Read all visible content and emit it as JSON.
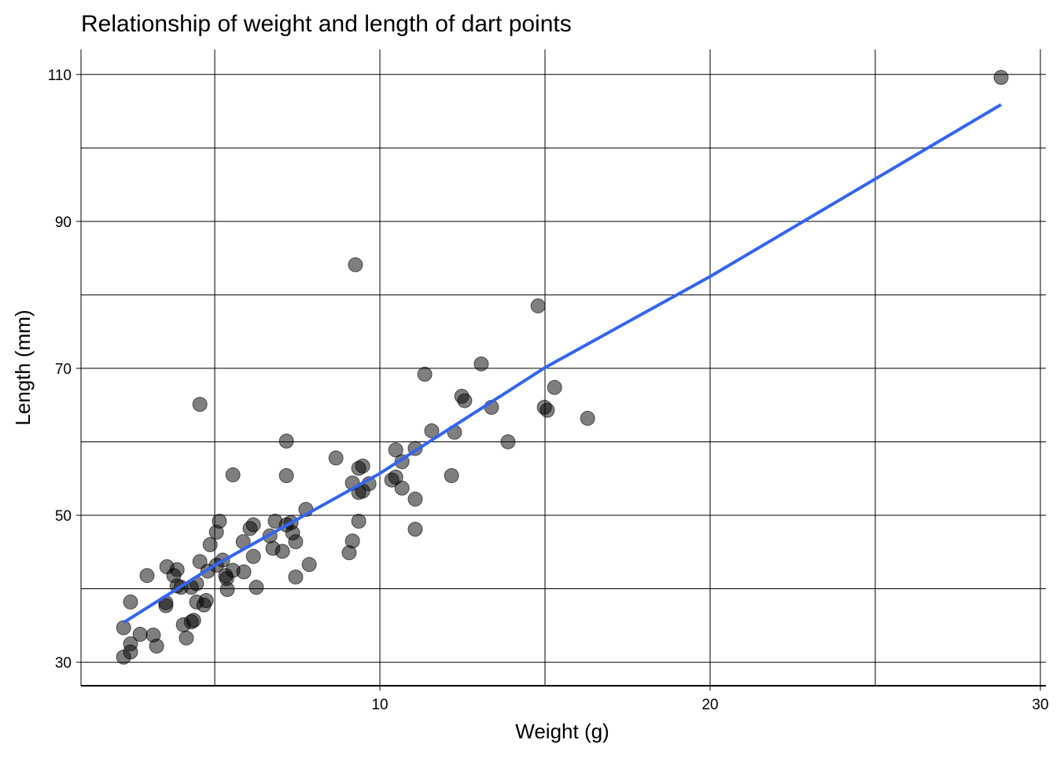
{
  "chart_data": {
    "type": "scatter",
    "title": "Relationship of weight and length of dart points",
    "x_label": "Weight (g)",
    "y_label": "Length (mm)",
    "x": [
      2.24,
      2.45,
      2.45,
      2.24,
      2.74,
      3.14,
      3.24,
      2.45,
      2.95,
      3.52,
      3.55,
      3.52,
      3.76,
      3.86,
      3.86,
      3.98,
      4.05,
      4.14,
      4.29,
      4.36,
      4.29,
      4.45,
      4.45,
      4.55,
      4.55,
      4.67,
      4.74,
      4.79,
      4.86,
      5.05,
      5.14,
      5.05,
      5.24,
      5.33,
      5.38,
      5.36,
      5.55,
      5.55,
      5.86,
      5.88,
      6.07,
      6.17,
      6.17,
      6.26,
      6.67,
      6.76,
      6.83,
      7.05,
      7.17,
      7.17,
      7.17,
      7.31,
      7.36,
      7.45,
      7.45,
      7.76,
      7.86,
      8.67,
      9.07,
      9.17,
      9.17,
      9.26,
      9.36,
      9.36,
      9.36,
      9.48,
      9.48,
      9.67,
      10.36,
      10.48,
      10.48,
      10.67,
      10.67,
      11.07,
      11.07,
      11.07,
      11.36,
      11.57,
      12.17,
      12.26,
      12.48,
      12.57,
      13.07,
      13.38,
      13.88,
      14.79,
      14.98,
      15.07,
      15.29,
      16.29,
      28.81
    ],
    "values": [
      30.7,
      31.4,
      32.5,
      34.7,
      33.8,
      33.7,
      32.2,
      38.2,
      41.8,
      38.1,
      43.0,
      37.7,
      41.8,
      42.6,
      40.4,
      40.2,
      35.1,
      33.3,
      35.5,
      35.7,
      40.2,
      40.7,
      38.2,
      43.7,
      65.1,
      37.8,
      38.4,
      42.4,
      46.0,
      47.7,
      49.2,
      43.2,
      43.9,
      41.8,
      39.9,
      41.4,
      42.5,
      55.5,
      46.4,
      42.3,
      48.2,
      48.7,
      44.4,
      40.2,
      47.2,
      45.5,
      49.2,
      45.1,
      60.1,
      55.4,
      48.7,
      49.0,
      47.6,
      46.4,
      41.6,
      50.8,
      43.3,
      57.8,
      44.9,
      46.5,
      54.4,
      84.1,
      56.4,
      53.1,
      49.2,
      56.7,
      53.3,
      54.3,
      54.8,
      58.9,
      55.2,
      57.3,
      53.7,
      59.1,
      52.2,
      48.1,
      69.2,
      61.5,
      55.4,
      61.3,
      66.2,
      65.6,
      70.6,
      64.7,
      60.0,
      78.5,
      64.7,
      64.3,
      67.4,
      63.2,
      109.6
    ],
    "color": "#000000",
    "fit_line": {
      "color": "#3366ee",
      "x": [
        2.24,
        5,
        10,
        15,
        20,
        28.81
      ],
      "values": [
        35.4,
        43.2,
        55.7,
        70.1,
        82.5,
        105.9
      ]
    },
    "xlim": [
      0.95,
      30.17
    ],
    "ylim": [
      26.8,
      113.4
    ],
    "xticks": [
      10,
      20,
      30
    ],
    "yticks": [
      30,
      50,
      70,
      90,
      110
    ],
    "xminorticks": [
      5,
      15,
      25
    ],
    "yminorticks": [
      40,
      60,
      80,
      100
    ],
    "grid": true
  }
}
